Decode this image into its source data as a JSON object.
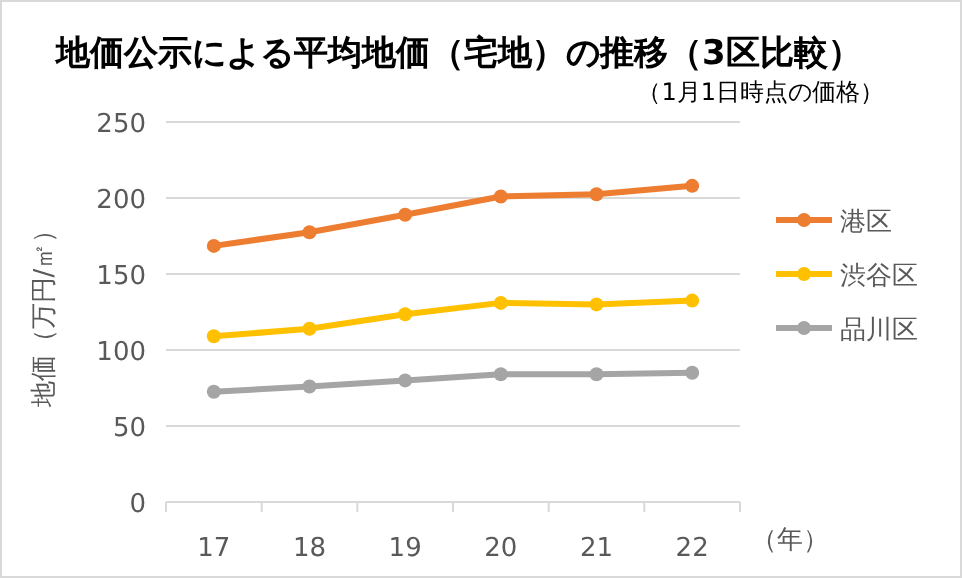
{
  "chart_data": {
    "type": "line",
    "title": "地価公示による平均地価（宅地）の推移（3区比較）",
    "subtitle": "（1月1日時点の価格）",
    "ylabel": "地価（万円/㎡）",
    "xlabel": "（年）",
    "categories": [
      "17",
      "18",
      "19",
      "20",
      "21",
      "22"
    ],
    "series": [
      {
        "name": "港区",
        "color": "#ed7d31",
        "values": [
          168.5,
          177.5,
          189,
          201,
          202.5,
          208
        ]
      },
      {
        "name": "渋谷区",
        "color": "#ffc000",
        "values": [
          109,
          114,
          123.5,
          131,
          130,
          132.5
        ]
      },
      {
        "name": "品川区",
        "color": "#a5a5a5",
        "values": [
          72.5,
          76,
          80,
          84,
          84,
          85
        ]
      }
    ],
    "ylim": [
      0,
      250
    ],
    "yticks": [
      0,
      50,
      100,
      150,
      200,
      250
    ],
    "grid": "y",
    "legend": "right",
    "marker": "circle",
    "line_style": "solid"
  }
}
